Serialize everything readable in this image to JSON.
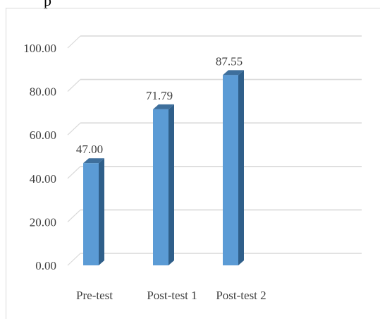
{
  "caption_fragment": "p",
  "chart_data": {
    "type": "bar",
    "style": "3d-column",
    "categories": [
      "Pre-test",
      "Post-test 1",
      "Post-test 2"
    ],
    "values": [
      47.0,
      71.79,
      87.55
    ],
    "data_labels": [
      "47.00",
      "71.79",
      "87.55"
    ],
    "y_ticks": [
      "0.00",
      "20.00",
      "40.00",
      "60.00",
      "80.00",
      "100.00"
    ],
    "ylim": [
      0,
      100
    ],
    "grid": true,
    "legend": "none",
    "title": "",
    "xlabel": "",
    "ylabel": "",
    "colors": {
      "bar_front": "#5b9bd5",
      "bar_side": "#2f5f8a",
      "bar_top": "#3e6f9c",
      "grid": "#d9d9d9",
      "text": "#404040"
    }
  }
}
